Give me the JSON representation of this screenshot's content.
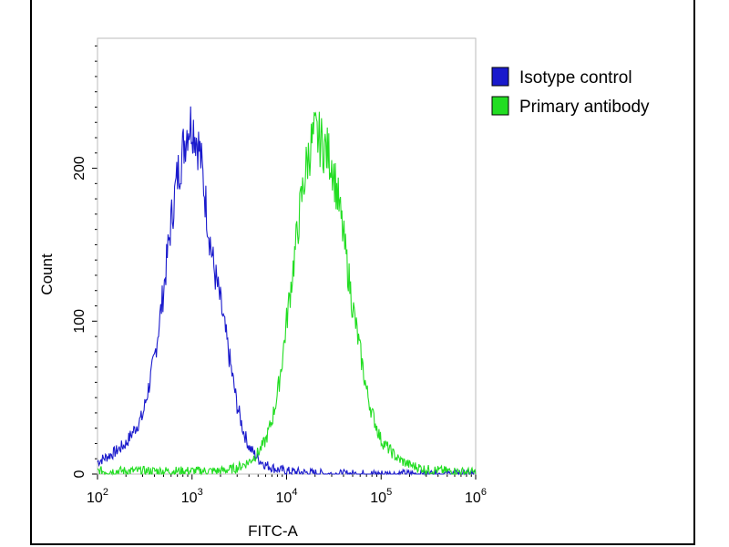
{
  "chart_data": {
    "type": "line",
    "title": "",
    "xlabel": "FITC-A",
    "ylabel": "Count",
    "xscale": "log",
    "xlim": [
      100,
      1000000
    ],
    "ylim": [
      0,
      285
    ],
    "x_ticks": [
      {
        "value": 100,
        "base": "10",
        "exp": "2"
      },
      {
        "value": 1000,
        "base": "10",
        "exp": "3"
      },
      {
        "value": 10000,
        "base": "10",
        "exp": "4"
      },
      {
        "value": 100000,
        "base": "10",
        "exp": "5"
      },
      {
        "value": 1000000,
        "base": "10",
        "exp": "6"
      }
    ],
    "y_ticks": [
      0,
      100,
      200
    ],
    "legend_position": "top-right",
    "series": [
      {
        "name": "Isotype control",
        "color": "#1a1acc",
        "x": [
          100,
          150,
          200,
          300,
          400,
          500,
          600,
          700,
          800,
          900,
          1000,
          1100,
          1200,
          1300,
          1500,
          1700,
          2000,
          2500,
          3000,
          3500,
          4000,
          5000,
          6000,
          8000,
          10000,
          15000,
          30000,
          100000,
          1000000
        ],
        "y": [
          8,
          14,
          20,
          38,
          75,
          120,
          165,
          195,
          212,
          228,
          230,
          222,
          212,
          195,
          160,
          135,
          112,
          75,
          45,
          28,
          18,
          10,
          6,
          3,
          2,
          1,
          0,
          0,
          0
        ]
      },
      {
        "name": "Primary antibody",
        "color": "#22dd22",
        "x": [
          100,
          1000,
          2000,
          3000,
          4000,
          5000,
          6000,
          7000,
          8000,
          9000,
          10000,
          12000,
          14000,
          16000,
          18000,
          20000,
          23000,
          26000,
          30000,
          35000,
          40000,
          50000,
          60000,
          70000,
          80000,
          100000,
          150000,
          200000,
          300000,
          500000,
          1000000
        ],
        "y": [
          2,
          2,
          2,
          4,
          8,
          14,
          22,
          35,
          52,
          75,
          100,
          140,
          175,
          200,
          215,
          222,
          218,
          212,
          205,
          180,
          155,
          110,
          80,
          55,
          40,
          22,
          10,
          6,
          3,
          2,
          1
        ]
      }
    ]
  }
}
